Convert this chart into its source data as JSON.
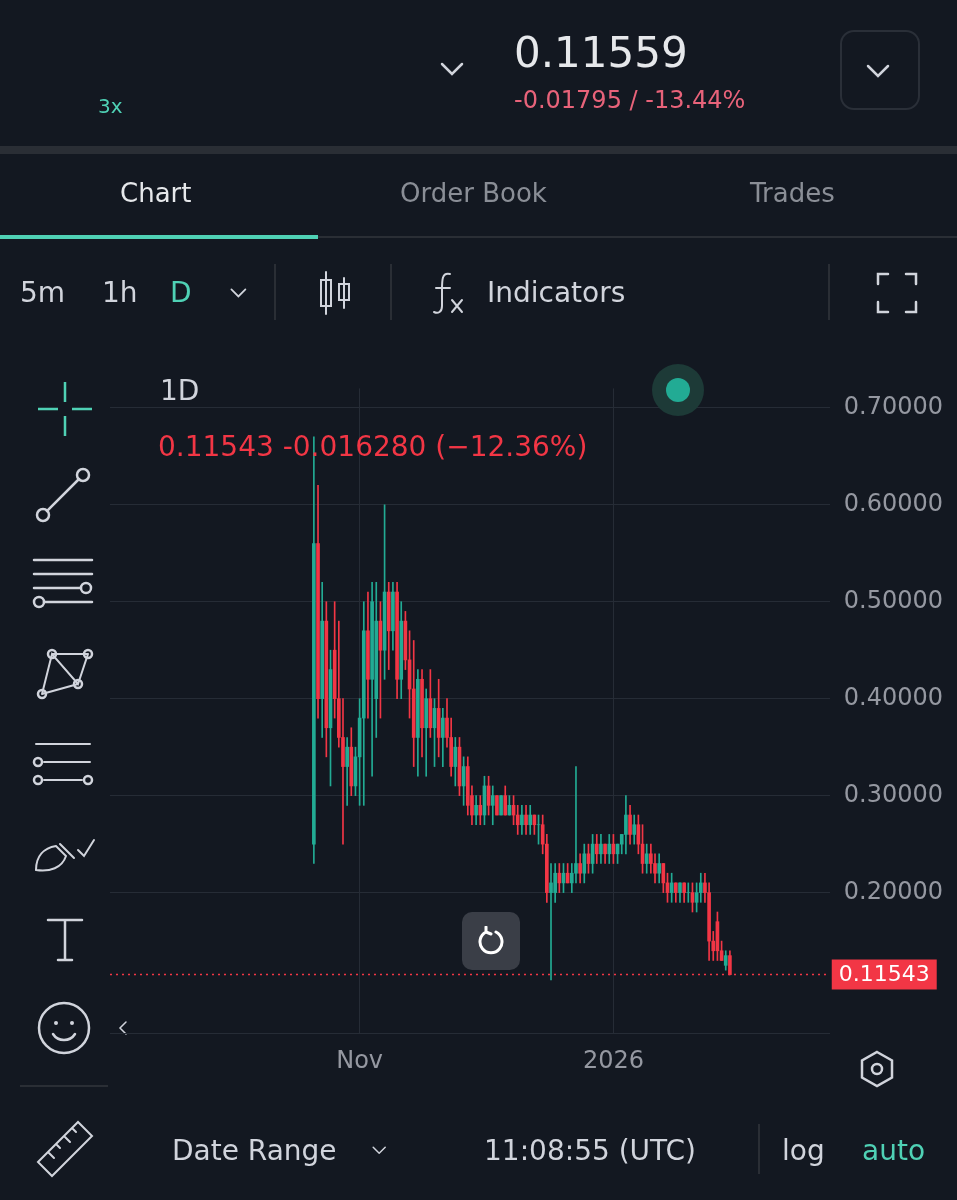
{
  "chart_data": {
    "type": "candlestick",
    "subtitle": "1D",
    "annotations": [
      "3x",
      "0.11559",
      "-0.01795 / -13.44%",
      "Chart",
      "Order Book",
      "Trades",
      "5m",
      "1h",
      "D",
      "Indicators",
      "0.11543 -0.016280 (−12.36%)",
      "Date Range",
      "11:08:55 (UTC)",
      "log",
      "auto"
    ],
    "series": [
      {
        "color": "#22ab94",
        "x": [
          "2025-10-21",
          "2025-10-23",
          "2025-10-25",
          "2025-10-29",
          "2025-10-31",
          "2025-11-01",
          "2025-11-02",
          "2025-11-04",
          "2025-11-05",
          "2025-11-07",
          "2025-11-09",
          "2025-11-11",
          "2025-11-15",
          "2025-11-17",
          "2025-11-19",
          "2025-11-21",
          "2025-11-24",
          "2025-11-26",
          "2025-11-29",
          "2025-12-01",
          "2025-12-03",
          "2025-12-05",
          "2025-12-07",
          "2025-12-10",
          "2025-12-12",
          "2025-12-14",
          "2025-12-17",
          "2025-12-18",
          "2025-12-20",
          "2025-12-22",
          "2025-12-23",
          "2025-12-25",
          "2025-12-27",
          "2025-12-29",
          "2025-12-31",
          "2026-01-02",
          "2026-01-03",
          "2026-01-04",
          "2026-01-06",
          "2026-01-09",
          "2026-01-12",
          "2026-01-15",
          "2026-01-17",
          "2026-01-19",
          "2026-01-21",
          "2026-01-22",
          "2026-01-28"
        ],
        "ohlc": [
          [
            0.25,
            0.67,
            0.23,
            0.56
          ],
          [
            0.4,
            0.52,
            0.36,
            0.48
          ],
          [
            0.37,
            0.45,
            0.31,
            0.43
          ],
          [
            0.33,
            0.36,
            0.29,
            0.35
          ],
          [
            0.31,
            0.35,
            0.3,
            0.34
          ],
          [
            0.34,
            0.4,
            0.29,
            0.38
          ],
          [
            0.38,
            0.5,
            0.29,
            0.47
          ],
          [
            0.42,
            0.52,
            0.32,
            0.5
          ],
          [
            0.4,
            0.52,
            0.36,
            0.48
          ],
          [
            0.45,
            0.6,
            0.42,
            0.51
          ],
          [
            0.47,
            0.52,
            0.45,
            0.51
          ],
          [
            0.42,
            0.5,
            0.4,
            0.48
          ],
          [
            0.36,
            0.43,
            0.32,
            0.42
          ],
          [
            0.37,
            0.41,
            0.32,
            0.4
          ],
          [
            0.37,
            0.4,
            0.33,
            0.39
          ],
          [
            0.36,
            0.39,
            0.33,
            0.38
          ],
          [
            0.33,
            0.36,
            0.31,
            0.35
          ],
          [
            0.31,
            0.34,
            0.29,
            0.33
          ],
          [
            0.28,
            0.3,
            0.27,
            0.29
          ],
          [
            0.28,
            0.32,
            0.27,
            0.31
          ],
          [
            0.29,
            0.31,
            0.27,
            0.3
          ],
          [
            0.28,
            0.3,
            0.28,
            0.3
          ],
          [
            0.28,
            0.3,
            0.28,
            0.29
          ],
          [
            0.27,
            0.29,
            0.26,
            0.28
          ],
          [
            0.27,
            0.29,
            0.26,
            0.28
          ],
          [
            0.27,
            0.28,
            0.25,
            0.27
          ],
          [
            0.2,
            0.23,
            0.11,
            0.21
          ],
          [
            0.2,
            0.23,
            0.19,
            0.22
          ],
          [
            0.21,
            0.23,
            0.2,
            0.22
          ],
          [
            0.21,
            0.23,
            0.2,
            0.22
          ],
          [
            0.22,
            0.33,
            0.21,
            0.23
          ],
          [
            0.22,
            0.25,
            0.21,
            0.24
          ],
          [
            0.23,
            0.26,
            0.22,
            0.25
          ],
          [
            0.24,
            0.26,
            0.23,
            0.25
          ],
          [
            0.24,
            0.26,
            0.23,
            0.25
          ],
          [
            0.24,
            0.25,
            0.23,
            0.25
          ],
          [
            0.25,
            0.26,
            0.24,
            0.26
          ],
          [
            0.26,
            0.3,
            0.24,
            0.28
          ],
          [
            0.26,
            0.28,
            0.25,
            0.27
          ],
          [
            0.23,
            0.25,
            0.22,
            0.24
          ],
          [
            0.22,
            0.24,
            0.21,
            0.23
          ],
          [
            0.2,
            0.22,
            0.19,
            0.21
          ],
          [
            0.2,
            0.21,
            0.19,
            0.21
          ],
          [
            0.2,
            0.21,
            0.19,
            0.2
          ],
          [
            0.19,
            0.21,
            0.18,
            0.2
          ],
          [
            0.2,
            0.22,
            0.19,
            0.21
          ],
          [
            0.125,
            0.14,
            0.12,
            0.135
          ]
        ]
      },
      {
        "color": "#f23645",
        "x": [
          "2025-10-22",
          "2025-10-24",
          "2025-10-26",
          "2025-10-27",
          "2025-10-28",
          "2025-10-30",
          "2025-11-03",
          "2025-11-06",
          "2025-11-08",
          "2025-11-10",
          "2025-11-12",
          "2025-11-13",
          "2025-11-14",
          "2025-11-16",
          "2025-11-18",
          "2025-11-20",
          "2025-11-22",
          "2025-11-23",
          "2025-11-25",
          "2025-11-27",
          "2025-11-28",
          "2025-11-30",
          "2025-12-02",
          "2025-12-04",
          "2025-12-06",
          "2025-12-08",
          "2025-12-09",
          "2025-12-11",
          "2025-12-13",
          "2025-12-15",
          "2025-12-16",
          "2025-12-19",
          "2025-12-21",
          "2025-12-24",
          "2025-12-26",
          "2025-12-28",
          "2025-12-30",
          "2026-01-01",
          "2026-01-05",
          "2026-01-07",
          "2026-01-08",
          "2026-01-10",
          "2026-01-11",
          "2026-01-13",
          "2026-01-14",
          "2026-01-16",
          "2026-01-18",
          "2026-01-20",
          "2026-01-23",
          "2026-01-24",
          "2026-01-25",
          "2026-01-26",
          "2026-01-27",
          "2026-01-29"
        ],
        "ohlc": [
          [
            0.56,
            0.62,
            0.38,
            0.4
          ],
          [
            0.48,
            0.5,
            0.34,
            0.37
          ],
          [
            0.45,
            0.5,
            0.38,
            0.4
          ],
          [
            0.4,
            0.48,
            0.35,
            0.36
          ],
          [
            0.36,
            0.4,
            0.25,
            0.33
          ],
          [
            0.35,
            0.37,
            0.3,
            0.31
          ],
          [
            0.47,
            0.51,
            0.38,
            0.42
          ],
          [
            0.48,
            0.5,
            0.38,
            0.45
          ],
          [
            0.51,
            0.52,
            0.43,
            0.47
          ],
          [
            0.51,
            0.52,
            0.4,
            0.42
          ],
          [
            0.48,
            0.49,
            0.43,
            0.44
          ],
          [
            0.44,
            0.47,
            0.38,
            0.41
          ],
          [
            0.41,
            0.46,
            0.33,
            0.36
          ],
          [
            0.42,
            0.43,
            0.34,
            0.37
          ],
          [
            0.4,
            0.43,
            0.36,
            0.37
          ],
          [
            0.39,
            0.42,
            0.34,
            0.36
          ],
          [
            0.38,
            0.4,
            0.35,
            0.36
          ],
          [
            0.36,
            0.38,
            0.32,
            0.33
          ],
          [
            0.35,
            0.36,
            0.3,
            0.31
          ],
          [
            0.33,
            0.34,
            0.28,
            0.29
          ],
          [
            0.3,
            0.31,
            0.27,
            0.28
          ],
          [
            0.29,
            0.3,
            0.27,
            0.28
          ],
          [
            0.31,
            0.32,
            0.28,
            0.29
          ],
          [
            0.3,
            0.3,
            0.28,
            0.28
          ],
          [
            0.3,
            0.31,
            0.28,
            0.28
          ],
          [
            0.29,
            0.3,
            0.27,
            0.28
          ],
          [
            0.28,
            0.29,
            0.26,
            0.27
          ],
          [
            0.28,
            0.29,
            0.26,
            0.27
          ],
          [
            0.28,
            0.28,
            0.26,
            0.27
          ],
          [
            0.27,
            0.28,
            0.24,
            0.25
          ],
          [
            0.25,
            0.26,
            0.19,
            0.2
          ],
          [
            0.22,
            0.23,
            0.2,
            0.21
          ],
          [
            0.22,
            0.23,
            0.21,
            0.21
          ],
          [
            0.23,
            0.24,
            0.21,
            0.22
          ],
          [
            0.24,
            0.25,
            0.22,
            0.23
          ],
          [
            0.25,
            0.26,
            0.23,
            0.24
          ],
          [
            0.25,
            0.25,
            0.23,
            0.24
          ],
          [
            0.25,
            0.26,
            0.23,
            0.24
          ],
          [
            0.28,
            0.29,
            0.25,
            0.26
          ],
          [
            0.27,
            0.28,
            0.24,
            0.25
          ],
          [
            0.25,
            0.27,
            0.22,
            0.23
          ],
          [
            0.24,
            0.25,
            0.22,
            0.23
          ],
          [
            0.23,
            0.24,
            0.21,
            0.22
          ],
          [
            0.23,
            0.23,
            0.2,
            0.21
          ],
          [
            0.21,
            0.22,
            0.19,
            0.2
          ],
          [
            0.21,
            0.21,
            0.19,
            0.2
          ],
          [
            0.21,
            0.21,
            0.19,
            0.2
          ],
          [
            0.2,
            0.21,
            0.18,
            0.19
          ],
          [
            0.21,
            0.22,
            0.19,
            0.2
          ],
          [
            0.2,
            0.21,
            0.13,
            0.15
          ],
          [
            0.15,
            0.16,
            0.13,
            0.14
          ],
          [
            0.17,
            0.18,
            0.13,
            0.14
          ],
          [
            0.14,
            0.15,
            0.13,
            0.13
          ],
          [
            0.135,
            0.14,
            0.115,
            0.11543
          ]
        ]
      }
    ],
    "xlim": [
      "2025-09-02",
      "2026-02-22"
    ],
    "xticks": [
      {
        "value": "2025-11-01",
        "label": "Nov"
      },
      {
        "value": "2026-01-01",
        "label": "2026"
      }
    ],
    "ylim": [
      0.055,
      0.72
    ],
    "yticks": [
      {
        "value": 0.2,
        "label": "0.20000"
      },
      {
        "value": 0.3,
        "label": "0.30000"
      },
      {
        "value": 0.4,
        "label": "0.40000"
      },
      {
        "value": 0.5,
        "label": "0.50000"
      },
      {
        "value": 0.6,
        "label": "0.60000"
      },
      {
        "value": 0.7,
        "label": "0.70000"
      }
    ],
    "ref_lines": [
      {
        "axis": "y",
        "value": 0.11543,
        "label": "0.11543",
        "color": "#f23645",
        "line_style": "dotted"
      }
    ],
    "grid": true,
    "legend": false
  }
}
